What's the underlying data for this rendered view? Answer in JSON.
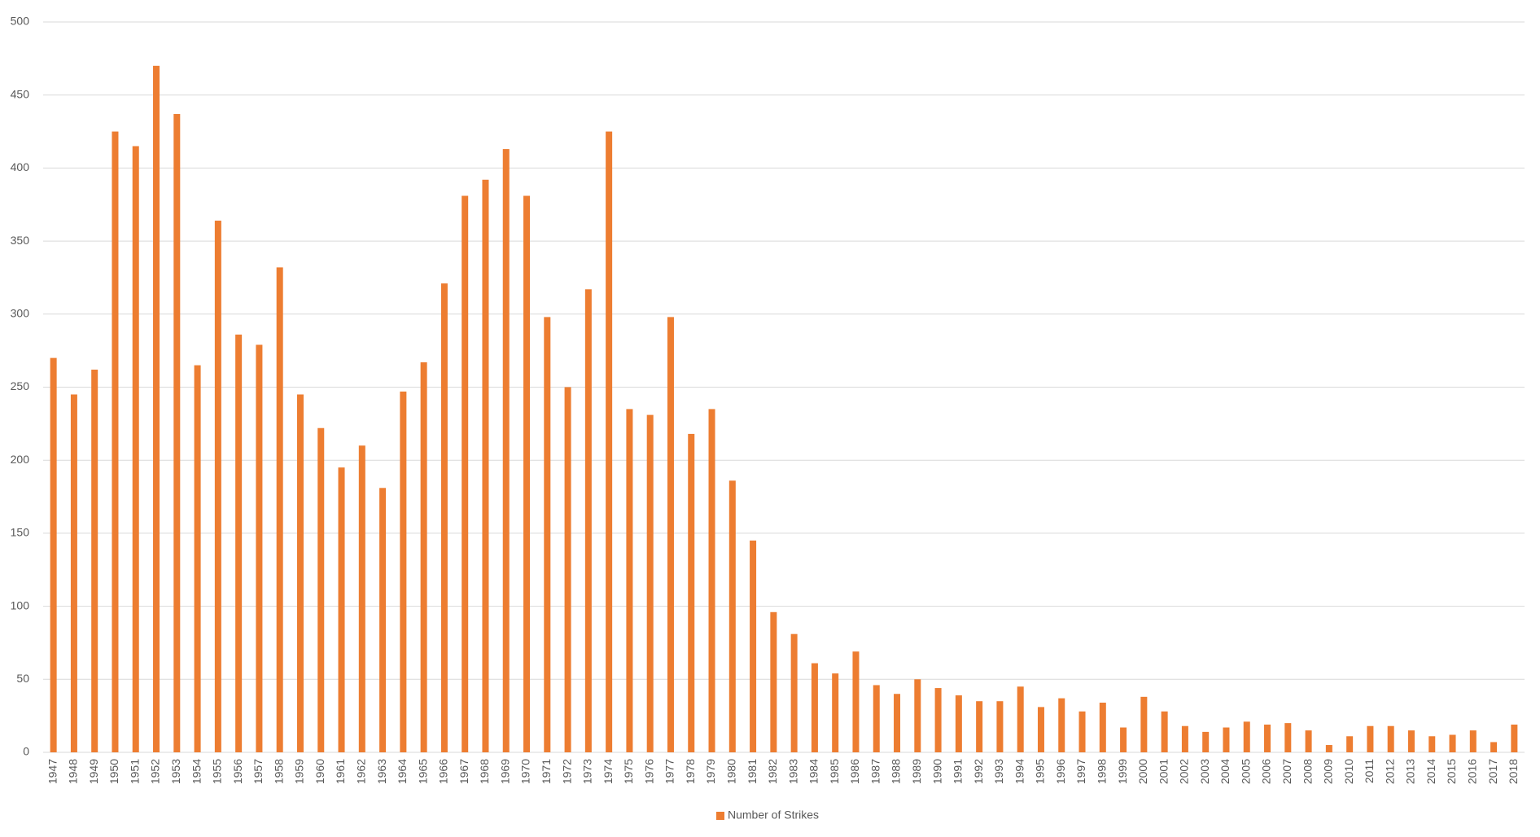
{
  "chart_data": {
    "type": "bar",
    "categories": [
      "1947",
      "1948",
      "1949",
      "1950",
      "1951",
      "1952",
      "1953",
      "1954",
      "1955",
      "1956",
      "1957",
      "1958",
      "1959",
      "1960",
      "1961",
      "1962",
      "1963",
      "1964",
      "1965",
      "1966",
      "1967",
      "1968",
      "1969",
      "1970",
      "1971",
      "1972",
      "1973",
      "1974",
      "1975",
      "1976",
      "1977",
      "1978",
      "1979",
      "1980",
      "1981",
      "1982",
      "1983",
      "1984",
      "1985",
      "1986",
      "1987",
      "1988",
      "1989",
      "1990",
      "1991",
      "1992",
      "1993",
      "1994",
      "1995",
      "1996",
      "1997",
      "1998",
      "1999",
      "2000",
      "2001",
      "2002",
      "2003",
      "2004",
      "2005",
      "2006",
      "2007",
      "2008",
      "2009",
      "2010",
      "2011",
      "2012",
      "2013",
      "2014",
      "2015",
      "2016",
      "2017",
      "2018"
    ],
    "series": [
      {
        "name": "Number of Strikes",
        "color": "#ed7d31",
        "values": [
          270,
          245,
          262,
          425,
          415,
          470,
          437,
          265,
          364,
          286,
          279,
          332,
          245,
          222,
          195,
          210,
          181,
          247,
          267,
          321,
          381,
          392,
          413,
          381,
          298,
          250,
          317,
          425,
          235,
          231,
          298,
          218,
          235,
          186,
          145,
          96,
          81,
          61,
          54,
          69,
          46,
          40,
          50,
          44,
          39,
          35,
          35,
          45,
          31,
          37,
          28,
          34,
          17,
          38,
          28,
          18,
          14,
          17,
          21,
          19,
          20,
          15,
          5,
          11,
          18,
          18,
          15,
          11,
          12,
          15,
          7,
          19
        ]
      }
    ],
    "ylim": [
      0,
      500
    ],
    "yticks": [
      0,
      50,
      100,
      150,
      200,
      250,
      300,
      350,
      400,
      450,
      500
    ],
    "grid": true,
    "legend": "bottom"
  }
}
